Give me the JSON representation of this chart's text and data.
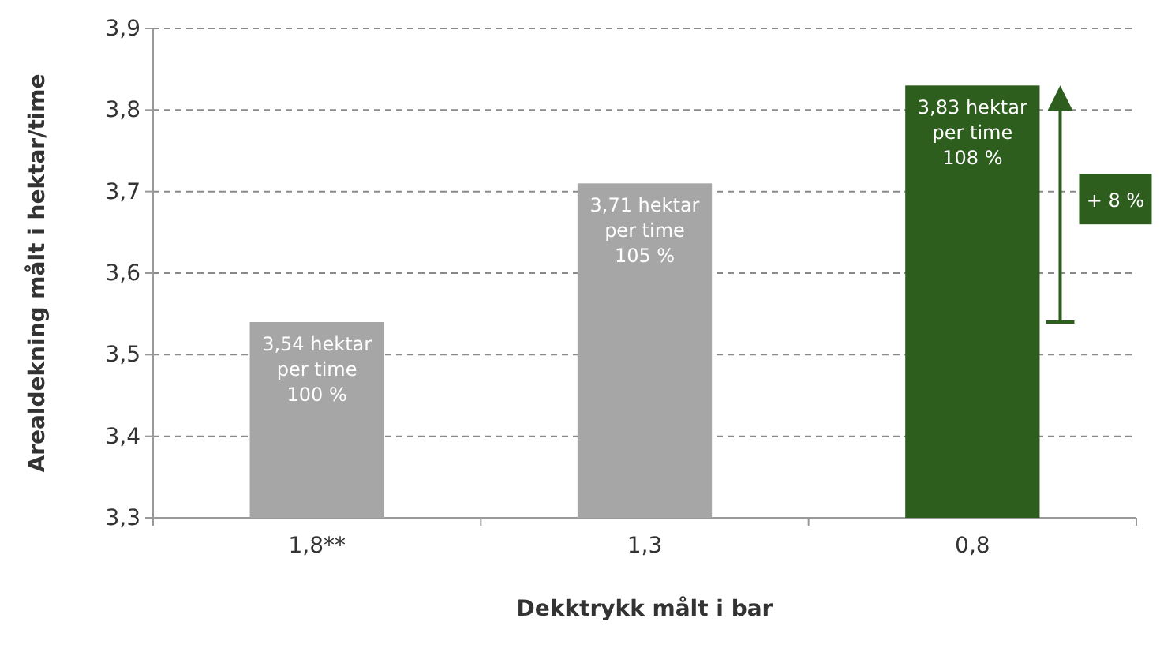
{
  "chart_data": {
    "type": "bar",
    "xlabel": "Dekktrykk målt i bar",
    "ylabel": "Arealdekning målt i hektar/time",
    "categories": [
      "1,8**",
      "1,3",
      "0,8"
    ],
    "values": [
      3.54,
      3.71,
      3.83
    ],
    "colors": [
      "#a6a6a6",
      "#a6a6a6",
      "#2d5e1e"
    ],
    "value_labels": [
      "3,54 hektar\nper time\n100 %",
      "3,71 hektar\nper time\n105 %",
      "3,83 hektar\nper time\n108 %"
    ],
    "ylim": [
      3.3,
      3.9
    ],
    "yticks": [
      {
        "value": 3.3,
        "label": "3,3"
      },
      {
        "value": 3.4,
        "label": "3,4"
      },
      {
        "value": 3.5,
        "label": "3,5"
      },
      {
        "value": 3.6,
        "label": "3,6"
      },
      {
        "value": 3.7,
        "label": "3,7"
      },
      {
        "value": 3.8,
        "label": "3,8"
      },
      {
        "value": 3.9,
        "label": "3,9"
      }
    ],
    "grid": "y",
    "annotations": [
      "+ 8 %"
    ]
  }
}
